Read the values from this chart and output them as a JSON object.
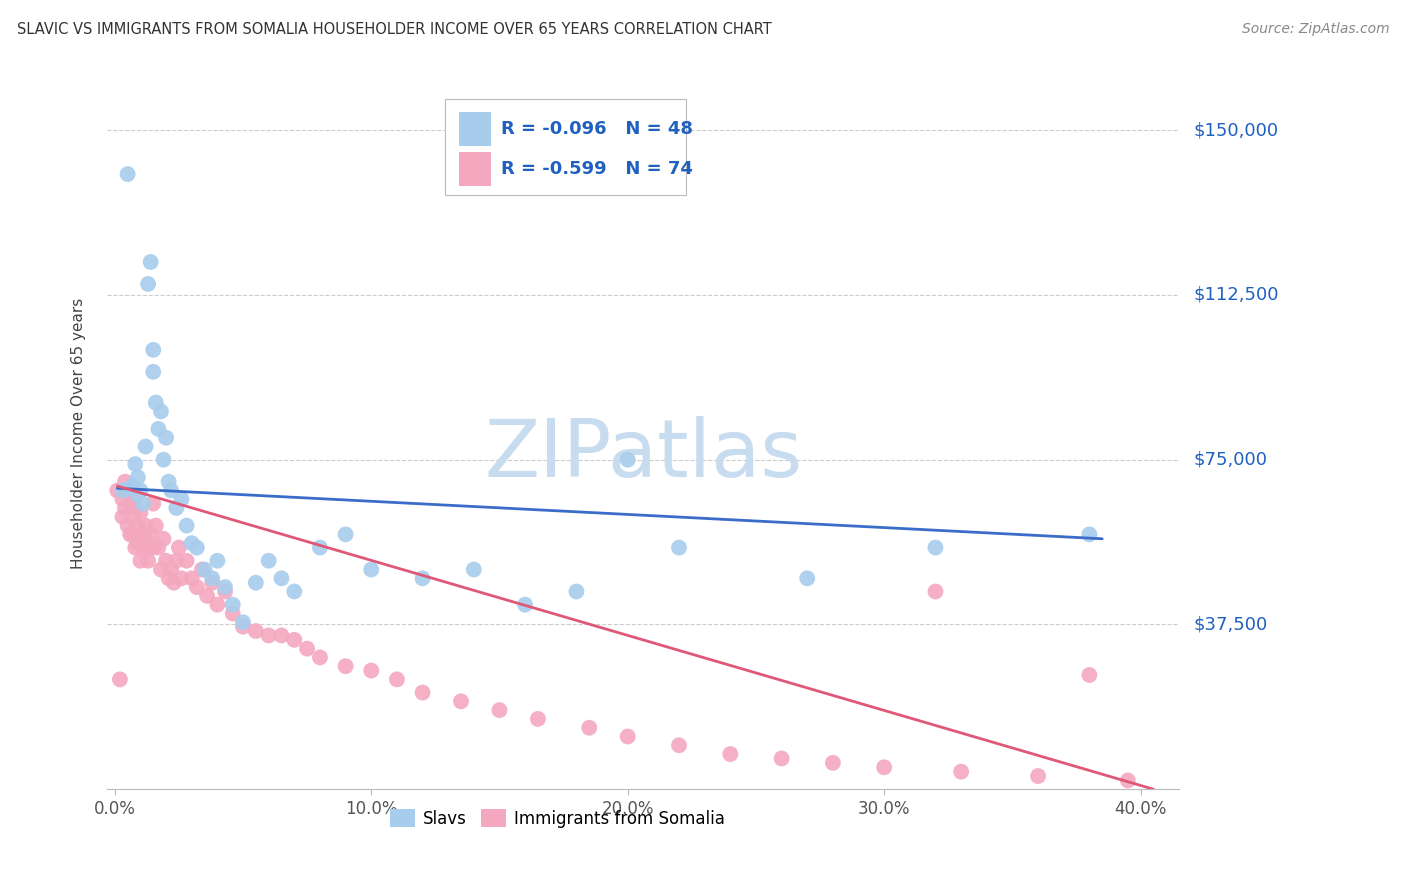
{
  "title": "SLAVIC VS IMMIGRANTS FROM SOMALIA HOUSEHOLDER INCOME OVER 65 YEARS CORRELATION CHART",
  "source": "Source: ZipAtlas.com",
  "xlabel_ticks": [
    "0.0%",
    "10.0%",
    "20.0%",
    "30.0%",
    "40.0%"
  ],
  "xlabel_tick_vals": [
    0.0,
    0.1,
    0.2,
    0.3,
    0.4
  ],
  "ylabel": "Householder Income Over 65 years",
  "ylabel_ticks": [
    "$37,500",
    "$75,000",
    "$112,500",
    "$150,000"
  ],
  "ylabel_tick_vals": [
    37500,
    75000,
    112500,
    150000
  ],
  "ylim": [
    0,
    162000
  ],
  "xlim": [
    -0.003,
    0.415
  ],
  "slavs_R": "-0.096",
  "slavs_N": "48",
  "somalia_R": "-0.599",
  "somalia_N": "74",
  "slavs_color": "#A8CCEC",
  "somalia_color": "#F4A8C0",
  "slavs_line_color": "#3A6CC8",
  "somalia_line_color": "#E05878",
  "watermark_text": "ZIPatlas",
  "watermark_color": "#C8DCF0",
  "background_color": "#FFFFFF",
  "grid_color": "#CCCCCC",
  "legend_text_color": "#2060C0",
  "tick_label_color": "#2060C0",
  "title_color": "#333333",
  "source_color": "#888888",
  "slavs_x": [
    0.003,
    0.005,
    0.006,
    0.007,
    0.008,
    0.009,
    0.009,
    0.01,
    0.011,
    0.012,
    0.013,
    0.014,
    0.015,
    0.015,
    0.016,
    0.017,
    0.018,
    0.019,
    0.02,
    0.021,
    0.022,
    0.024,
    0.026,
    0.028,
    0.03,
    0.032,
    0.035,
    0.038,
    0.04,
    0.043,
    0.046,
    0.05,
    0.055,
    0.06,
    0.065,
    0.07,
    0.08,
    0.09,
    0.1,
    0.12,
    0.14,
    0.16,
    0.18,
    0.2,
    0.22,
    0.27,
    0.32,
    0.38
  ],
  "slavs_y": [
    68000,
    140000,
    68500,
    69000,
    74000,
    71000,
    67000,
    68000,
    65000,
    78000,
    115000,
    120000,
    100000,
    95000,
    88000,
    82000,
    86000,
    75000,
    80000,
    70000,
    68000,
    64000,
    66000,
    60000,
    56000,
    55000,
    50000,
    48000,
    52000,
    46000,
    42000,
    38000,
    47000,
    52000,
    48000,
    45000,
    55000,
    58000,
    50000,
    48000,
    50000,
    42000,
    45000,
    75000,
    55000,
    48000,
    55000,
    58000
  ],
  "somalia_x": [
    0.001,
    0.002,
    0.003,
    0.003,
    0.004,
    0.004,
    0.005,
    0.005,
    0.006,
    0.006,
    0.007,
    0.007,
    0.008,
    0.008,
    0.009,
    0.009,
    0.01,
    0.01,
    0.011,
    0.011,
    0.012,
    0.012,
    0.013,
    0.013,
    0.014,
    0.015,
    0.015,
    0.016,
    0.017,
    0.018,
    0.019,
    0.02,
    0.021,
    0.022,
    0.023,
    0.024,
    0.025,
    0.026,
    0.028,
    0.03,
    0.032,
    0.034,
    0.036,
    0.038,
    0.04,
    0.043,
    0.046,
    0.05,
    0.055,
    0.06,
    0.065,
    0.07,
    0.075,
    0.08,
    0.09,
    0.1,
    0.11,
    0.12,
    0.135,
    0.15,
    0.165,
    0.185,
    0.2,
    0.22,
    0.24,
    0.26,
    0.28,
    0.3,
    0.33,
    0.36,
    0.38,
    0.395,
    0.005,
    0.32
  ],
  "somalia_y": [
    68000,
    25000,
    66000,
    62000,
    70000,
    64000,
    68000,
    60000,
    65000,
    58000,
    62000,
    58000,
    64000,
    55000,
    60000,
    56000,
    63000,
    52000,
    58000,
    55000,
    60000,
    57000,
    55000,
    52000,
    58000,
    65000,
    55000,
    60000,
    55000,
    50000,
    57000,
    52000,
    48000,
    50000,
    47000,
    52000,
    55000,
    48000,
    52000,
    48000,
    46000,
    50000,
    44000,
    47000,
    42000,
    45000,
    40000,
    37000,
    36000,
    35000,
    35000,
    34000,
    32000,
    30000,
    28000,
    27000,
    25000,
    22000,
    20000,
    18000,
    16000,
    14000,
    12000,
    10000,
    8000,
    7000,
    6000,
    5000,
    4000,
    3000,
    26000,
    2000,
    68000,
    45000
  ],
  "slavs_line_x": [
    0.001,
    0.385
  ],
  "slavs_line_y": [
    68500,
    57000
  ],
  "somalia_line_x": [
    0.001,
    0.405
  ],
  "somalia_line_y": [
    69000,
    0
  ]
}
